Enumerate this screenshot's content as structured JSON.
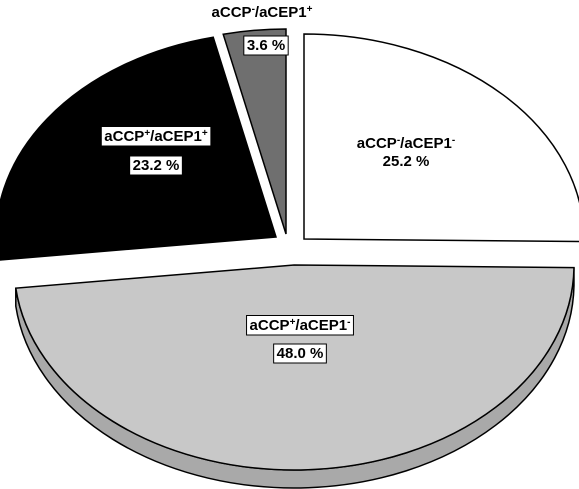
{
  "chart_data": {
    "type": "pie",
    "title": "",
    "style": "exploded 3d pie",
    "slices": [
      {
        "label_main": "aCCP",
        "label_sup1": "-",
        "label_mid": "/aCEP1",
        "label_sup2": "-",
        "value": 25.2,
        "value_text": "25.2 %",
        "color": "#ffffff",
        "side_color": "#f2f2f2",
        "text_color": "#000000",
        "label_boxed": false
      },
      {
        "label_main": "aCCP",
        "label_sup1": "+",
        "label_mid": "/aCEP1",
        "label_sup2": "-",
        "value": 48.0,
        "value_text": "48.0 %",
        "color": "#c8c8c8",
        "side_color": "#a9a9a9",
        "text_color": "#000000",
        "label_boxed": true
      },
      {
        "label_main": "aCCP",
        "label_sup1": "+",
        "label_mid": "/aCEP1",
        "label_sup2": "+",
        "value": 23.2,
        "value_text": "23.2 %",
        "color": "#000000",
        "side_color": "#000000",
        "text_color": "#000000",
        "label_boxed": true
      },
      {
        "label_main": "aCCP",
        "label_sup1": "-",
        "label_mid": "/aCEP1",
        "label_sup2": "+",
        "value": 3.6,
        "value_text": "3.6 %",
        "color": "#6f6f6f",
        "side_color": "#5a5a5a",
        "text_color": "#000000",
        "label_boxed": true,
        "label_outside": true
      }
    ]
  }
}
